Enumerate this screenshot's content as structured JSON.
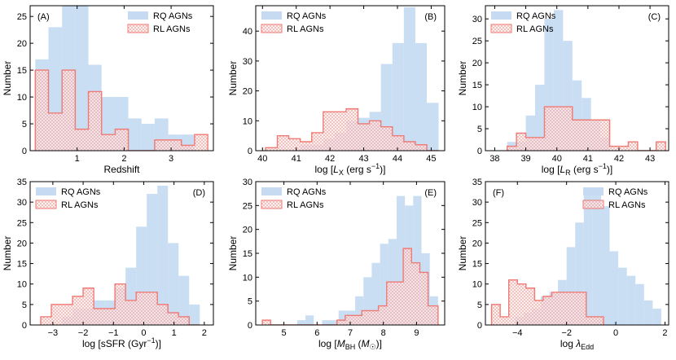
{
  "colors": {
    "rq_fill": "#c6dbf2",
    "rl_edge": "#f07a74",
    "rl_hatch": "#f5a8a4"
  },
  "legend_labels": {
    "rq": "RQ AGNs",
    "rl": "RL AGNs"
  },
  "chart_data": [
    {
      "type": "bar",
      "tag": "(A)",
      "xlabel": "Redshift",
      "ylabel": "Number",
      "xlim": [
        0,
        3.9
      ],
      "ylim": [
        0,
        27
      ],
      "xticks": [
        {
          "v": 1,
          "t": "1"
        },
        {
          "v": 2,
          "t": "2"
        },
        {
          "v": 3,
          "t": "3"
        }
      ],
      "yticks": [
        {
          "v": 0,
          "t": "0"
        },
        {
          "v": 5,
          "t": "5"
        },
        {
          "v": 10,
          "t": "10"
        },
        {
          "v": 15,
          "t": "15"
        },
        {
          "v": 20,
          "t": "20"
        },
        {
          "v": 25,
          "t": "25"
        }
      ],
      "legend_loc": "top-right",
      "series": [
        {
          "name": "RQ AGNs",
          "style": "rq",
          "edges": [
            0.11,
            0.39,
            0.68,
            0.96,
            1.24,
            1.52,
            1.81,
            2.09,
            2.37,
            2.65,
            2.94,
            3.22,
            3.5,
            3.78
          ],
          "counts": [
            17,
            23,
            27,
            27,
            16,
            10,
            10,
            6,
            5,
            6,
            3,
            3,
            0
          ]
        },
        {
          "name": "RL AGNs",
          "style": "rl",
          "edges": [
            0.11,
            0.39,
            0.68,
            0.96,
            1.24,
            1.52,
            1.81,
            2.09,
            2.37,
            2.65,
            2.94,
            3.22,
            3.5,
            3.78
          ],
          "counts": [
            15,
            7,
            15,
            4,
            11,
            3,
            4,
            0,
            0,
            2,
            2,
            1,
            3
          ]
        }
      ]
    },
    {
      "type": "bar",
      "tag": "(B)",
      "xlabel": "log [L_X (erg s^-1)]",
      "ylabel": "Number",
      "xlim": [
        39.8,
        45.4
      ],
      "ylim": [
        0,
        48.5
      ],
      "xticks": [
        {
          "v": 40,
          "t": "40"
        },
        {
          "v": 41,
          "t": "41"
        },
        {
          "v": 42,
          "t": "42"
        },
        {
          "v": 43,
          "t": "43"
        },
        {
          "v": 44,
          "t": "44"
        },
        {
          "v": 45,
          "t": "45"
        }
      ],
      "yticks": [
        {
          "v": 0,
          "t": "0"
        },
        {
          "v": 10,
          "t": "10"
        },
        {
          "v": 20,
          "t": "20"
        },
        {
          "v": 30,
          "t": "30"
        },
        {
          "v": 40,
          "t": "40"
        }
      ],
      "legend_loc": "top-left",
      "series": [
        {
          "name": "RQ AGNs",
          "style": "rq",
          "edges": [
            40.09,
            40.44,
            40.78,
            41.12,
            41.46,
            41.8,
            42.14,
            42.48,
            42.83,
            43.17,
            43.51,
            43.85,
            44.19,
            44.53,
            44.87,
            45.22
          ],
          "counts": [
            0,
            0,
            0,
            2,
            2,
            4,
            6,
            10,
            11,
            13,
            29,
            36,
            48,
            36,
            16
          ]
        },
        {
          "name": "RL AGNs",
          "style": "rl",
          "edges": [
            40.09,
            40.44,
            40.78,
            41.12,
            41.46,
            41.8,
            42.14,
            42.48,
            42.83,
            43.17,
            43.51,
            43.85,
            44.19,
            44.53,
            44.87,
            45.22
          ],
          "counts": [
            1,
            5,
            4,
            3,
            6,
            13,
            13,
            14,
            9,
            10,
            8,
            5,
            3,
            2,
            0
          ]
        }
      ]
    },
    {
      "type": "bar",
      "tag": "(C)",
      "xlabel": "log [L_R (erg s^-1)]",
      "ylabel": "Number",
      "xlim": [
        37.7,
        43.6
      ],
      "ylim": [
        0,
        33
      ],
      "xticks": [
        {
          "v": 38,
          "t": "38"
        },
        {
          "v": 39,
          "t": "39"
        },
        {
          "v": 40,
          "t": "40"
        },
        {
          "v": 41,
          "t": "41"
        },
        {
          "v": 42,
          "t": "42"
        },
        {
          "v": 43,
          "t": "43"
        }
      ],
      "yticks": [
        {
          "v": 0,
          "t": "0"
        },
        {
          "v": 5,
          "t": "5"
        },
        {
          "v": 10,
          "t": "10"
        },
        {
          "v": 15,
          "t": "15"
        },
        {
          "v": 20,
          "t": "20"
        },
        {
          "v": 25,
          "t": "25"
        },
        {
          "v": 30,
          "t": "30"
        }
      ],
      "legend_loc": "top-left",
      "series": [
        {
          "name": "RQ AGNs",
          "style": "rq",
          "edges": [
            38.4,
            38.7,
            39,
            39.3,
            39.6,
            39.9,
            40.2,
            40.5,
            40.8,
            41.1,
            41.4,
            41.7,
            42
          ],
          "counts": [
            2,
            2,
            8,
            15,
            30,
            32,
            25,
            16,
            12,
            7,
            3,
            0
          ]
        },
        {
          "name": "RL AGNs",
          "style": "rl",
          "edges": [
            38.4,
            38.7,
            39,
            39.3,
            39.6,
            39.9,
            40.2,
            40.5,
            40.8,
            41.1,
            41.4,
            41.7,
            42,
            42.3,
            42.6,
            42.9,
            43.2,
            43.5
          ],
          "counts": [
            1,
            4,
            3,
            3,
            10,
            10,
            10,
            7,
            7,
            7,
            7,
            1,
            1,
            2,
            0,
            0,
            2
          ]
        }
      ]
    },
    {
      "type": "bar",
      "tag": "(D)",
      "xlabel": "log [sSFR (Gyr^-1)]",
      "ylabel": "Number",
      "xlim": [
        -3.75,
        2.3
      ],
      "ylim": [
        0,
        35
      ],
      "xticks": [
        {
          "v": -3,
          "t": "−3"
        },
        {
          "v": -2,
          "t": "−2"
        },
        {
          "v": -1,
          "t": "−1"
        },
        {
          "v": 0,
          "t": "0"
        },
        {
          "v": 1,
          "t": "1"
        },
        {
          "v": 2,
          "t": "2"
        }
      ],
      "yticks": [
        {
          "v": 0,
          "t": "0"
        },
        {
          "v": 5,
          "t": "5"
        },
        {
          "v": 10,
          "t": "10"
        },
        {
          "v": 15,
          "t": "15"
        },
        {
          "v": 20,
          "t": "20"
        },
        {
          "v": 25,
          "t": "25"
        },
        {
          "v": 30,
          "t": "30"
        },
        {
          "v": 35,
          "t": "35"
        }
      ],
      "legend_loc": "top-left",
      "series": [
        {
          "name": "RQ AGNs",
          "style": "rq",
          "edges": [
            -3.4,
            -3.05,
            -2.7,
            -2.35,
            -2,
            -1.65,
            -1.3,
            -0.95,
            -0.6,
            -0.25,
            0.1,
            0.45,
            0.8,
            1.15,
            1.5,
            1.85
          ],
          "counts": [
            0,
            0,
            2,
            4,
            4,
            6,
            6,
            9,
            14,
            24,
            32,
            34,
            20,
            12,
            5
          ]
        },
        {
          "name": "RL AGNs",
          "style": "rl",
          "edges": [
            -3.4,
            -3.05,
            -2.7,
            -2.35,
            -2,
            -1.65,
            -1.3,
            -0.95,
            -0.6,
            -0.25,
            0.1,
            0.45,
            0.8,
            1.15,
            1.5,
            1.85
          ],
          "counts": [
            2,
            5,
            5,
            7,
            9,
            4,
            4,
            10,
            6,
            8,
            8,
            5,
            3,
            2,
            0
          ]
        }
      ]
    },
    {
      "type": "bar",
      "tag": "(E)",
      "xlabel": "log [M_BH (M_☉)]",
      "ylabel": "Number",
      "xlim": [
        4.15,
        9.85
      ],
      "ylim": [
        0,
        30
      ],
      "xticks": [
        {
          "v": 5,
          "t": "5"
        },
        {
          "v": 6,
          "t": "6"
        },
        {
          "v": 7,
          "t": "7"
        },
        {
          "v": 8,
          "t": "8"
        },
        {
          "v": 9,
          "t": "9"
        }
      ],
      "yticks": [
        {
          "v": 0,
          "t": "0"
        },
        {
          "v": 5,
          "t": "5"
        },
        {
          "v": 10,
          "t": "10"
        },
        {
          "v": 15,
          "t": "15"
        },
        {
          "v": 20,
          "t": "20"
        },
        {
          "v": 25,
          "t": "25"
        },
        {
          "v": 30,
          "t": "30"
        }
      ],
      "legend_loc": "top-left",
      "series": [
        {
          "name": "RQ AGNs",
          "style": "rq",
          "edges": [
            5.4,
            5.65,
            5.9,
            6.15,
            6.4,
            6.65,
            6.9,
            7.15,
            7.4,
            7.65,
            7.9,
            8.15,
            8.4,
            8.65,
            8.9,
            9.15,
            9.4,
            9.65
          ],
          "counts": [
            1,
            2,
            0,
            1,
            1,
            3,
            3,
            6,
            10,
            13,
            17,
            18,
            27,
            25,
            27,
            15,
            6
          ]
        },
        {
          "name": "RL AGNs",
          "style": "rl",
          "edges": [
            4.35,
            4.6,
            4.85,
            5.1,
            5.35,
            5.6,
            5.85,
            6.1,
            6.35,
            6.6,
            6.85,
            7.1,
            7.35,
            7.6,
            7.85,
            8.1,
            8.35,
            8.6,
            8.85,
            9.1,
            9.35,
            9.65
          ],
          "counts": [
            1,
            0,
            0,
            0,
            0,
            0,
            0,
            0,
            0,
            1,
            2,
            2,
            3,
            3,
            4,
            9,
            9,
            16,
            13,
            11,
            4
          ]
        }
      ]
    },
    {
      "type": "bar",
      "tag": "(F)",
      "xlabel": "log λ_Edd",
      "ylabel": "Number",
      "xlim": [
        -5.3,
        2.15
      ],
      "ylim": [
        0,
        35
      ],
      "xticks": [
        {
          "v": -4,
          "t": "−4"
        },
        {
          "v": -2,
          "t": "−2"
        },
        {
          "v": 0,
          "t": "0"
        },
        {
          "v": 2,
          "t": "2"
        }
      ],
      "yticks": [
        {
          "v": 0,
          "t": "0"
        },
        {
          "v": 5,
          "t": "5"
        },
        {
          "v": 10,
          "t": "10"
        },
        {
          "v": 15,
          "t": "15"
        },
        {
          "v": 20,
          "t": "20"
        },
        {
          "v": 25,
          "t": "25"
        },
        {
          "v": 30,
          "t": "30"
        },
        {
          "v": 35,
          "t": "35"
        }
      ],
      "legend_loc": "top-right",
      "series": [
        {
          "name": "RQ AGNs",
          "style": "rq",
          "edges": [
            -4.1,
            -3.75,
            -3.4,
            -3.05,
            -2.7,
            -2.35,
            -2,
            -1.65,
            -1.3,
            -0.95,
            -0.6,
            -0.25,
            0.1,
            0.45,
            0.8,
            1.15,
            1.5,
            1.85
          ],
          "counts": [
            2,
            3,
            4,
            7,
            8,
            11,
            19,
            25,
            33,
            32,
            29,
            18,
            14,
            12,
            10,
            6,
            4
          ]
        },
        {
          "name": "RL AGNs",
          "style": "rl",
          "edges": [
            -5.05,
            -4.7,
            -4.35,
            -4,
            -3.65,
            -3.3,
            -2.95,
            -2.6,
            -2.25,
            -1.9,
            -1.55,
            -1.2,
            -0.85,
            -0.5
          ],
          "counts": [
            5,
            2,
            11,
            10,
            9,
            6,
            7,
            8,
            8,
            8,
            8,
            2,
            2
          ]
        }
      ]
    }
  ]
}
